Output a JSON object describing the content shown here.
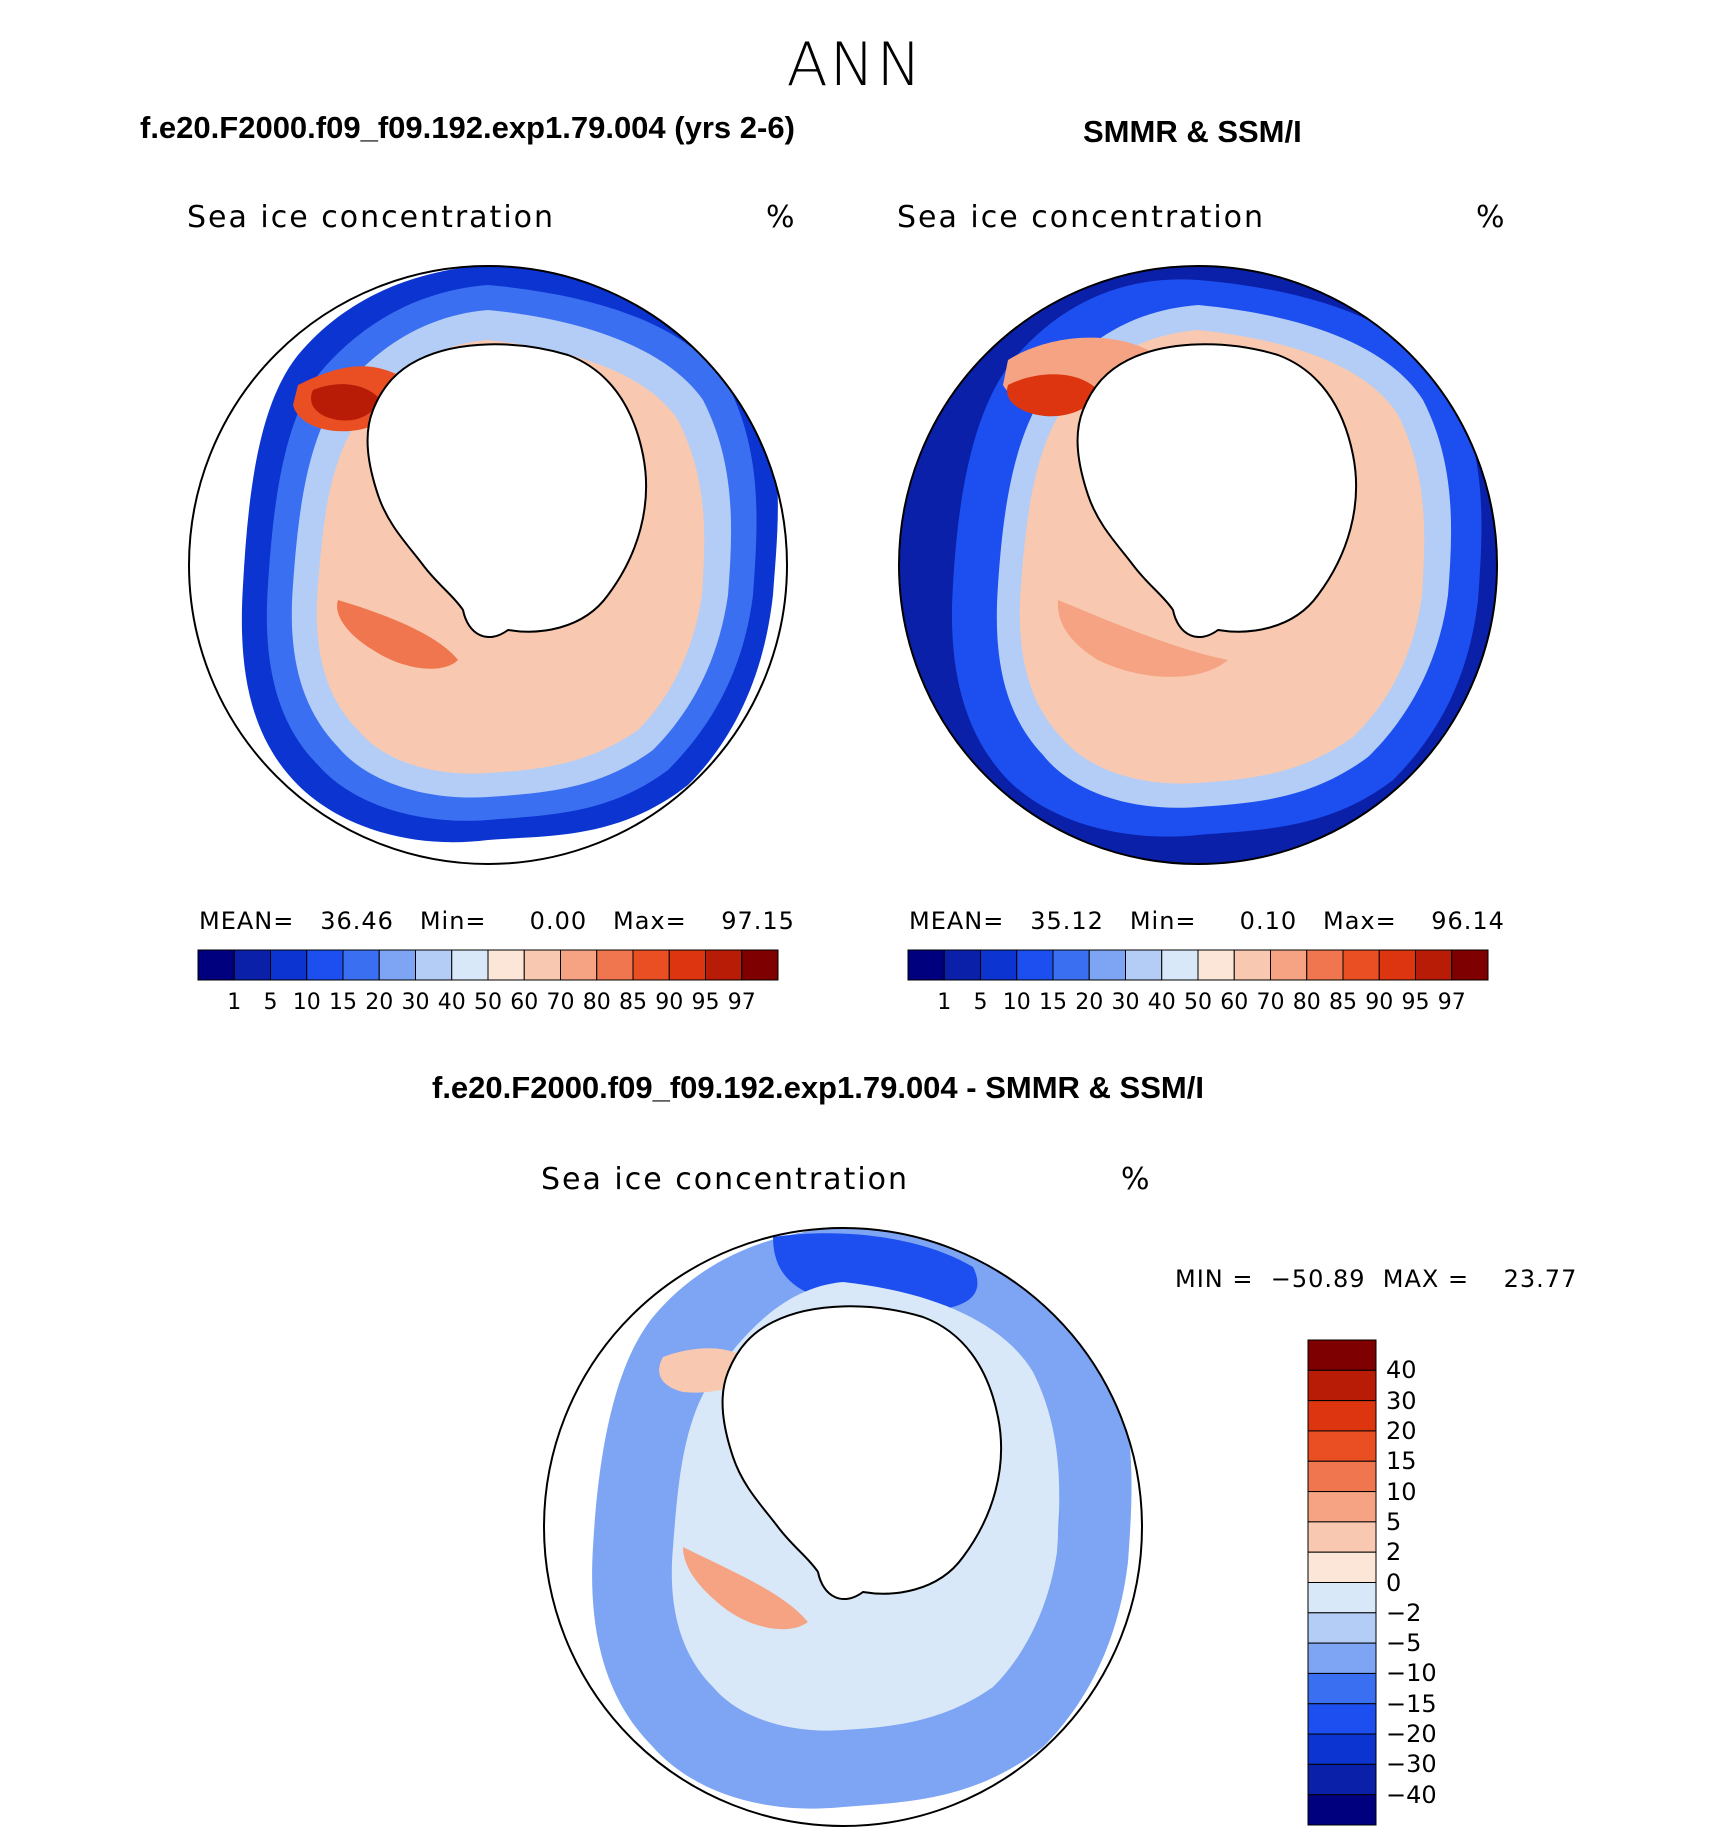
{
  "figure": {
    "title": "ANN",
    "variable": "Sea ice concentration",
    "units": "%"
  },
  "panels": {
    "model": {
      "title": "f.e20.F2000.f09_f09.192.exp1.79.004 (yrs 2-6)",
      "stats_text": "MEAN=   36.46   Min=     0.00   Max=    97.15",
      "mean": 36.46,
      "min": 0.0,
      "max": 97.15
    },
    "obs": {
      "title": "SMMR & SSM/I",
      "stats_text": "MEAN=   35.12   Min=     0.10   Max=    96.14",
      "mean": 35.12,
      "min": 0.1,
      "max": 96.14
    },
    "diff": {
      "title": "f.e20.F2000.f09_f09.192.exp1.79.004 - SMMR & SSM/I",
      "stats_text": "MIN =  −50.89  MAX =    23.77",
      "min": -50.89,
      "max": 23.77
    }
  },
  "colorbar_abs": {
    "ticks": [
      "1",
      "5",
      "10",
      "15",
      "20",
      "30",
      "40",
      "50",
      "60",
      "70",
      "80",
      "85",
      "90",
      "95",
      "97"
    ],
    "colors": [
      "#00007f",
      "#0a20a8",
      "#0b34d0",
      "#1d4ff0",
      "#3b6ff2",
      "#7ea4f4",
      "#b4cdf6",
      "#d9e8f8",
      "#fbe6d8",
      "#f8c9b0",
      "#f5a383",
      "#ef764e",
      "#ea4f24",
      "#dd3510",
      "#b81c07",
      "#7f0000"
    ]
  },
  "colorbar_diff": {
    "ticks": [
      "40",
      "30",
      "20",
      "15",
      "10",
      "5",
      "2",
      "0",
      "−2",
      "−5",
      "−10",
      "−15",
      "−20",
      "−30",
      "−40"
    ],
    "colors": [
      "#7f0000",
      "#b81c07",
      "#dd3510",
      "#ea4f24",
      "#ef764e",
      "#f5a383",
      "#f8c9b0",
      "#fbe6d8",
      "#d9e8f8",
      "#b4cdf6",
      "#7ea4f4",
      "#3b6ff2",
      "#1d4ff0",
      "#0b34d0",
      "#0a20a8",
      "#00007f"
    ]
  }
}
